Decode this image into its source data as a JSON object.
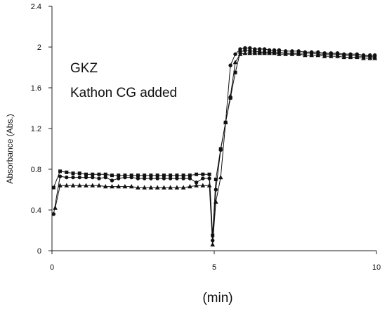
{
  "chart_data": {
    "type": "line",
    "xlabel": "(min)",
    "ylabel": "Absorbance (Abs.)",
    "xlim": [
      0,
      10
    ],
    "ylim": [
      0,
      2.4
    ],
    "xticks": [
      0,
      5,
      10
    ],
    "yticks": [
      0,
      0.4,
      0.8,
      1.2,
      1.6,
      2,
      2.4
    ],
    "xtick_labels": [
      "0",
      "5",
      "10"
    ],
    "ytick_labels": [
      "0",
      "0.4",
      "0.8",
      "1.2",
      "1.6",
      "2",
      "2.4"
    ],
    "annotations": [
      "GKZ",
      "Kathon CG added"
    ],
    "grid": false,
    "series": [
      {
        "marker": "square",
        "x": [
          0.05,
          0.25,
          0.45,
          0.65,
          0.85,
          1.05,
          1.25,
          1.45,
          1.65,
          1.85,
          2.05,
          2.25,
          2.45,
          2.65,
          2.85,
          3.05,
          3.25,
          3.45,
          3.65,
          3.85,
          4.05,
          4.25,
          4.45,
          4.65,
          4.85,
          4.95,
          5.05,
          5.2,
          5.35,
          5.5,
          5.65,
          5.8,
          5.95,
          6.1,
          6.25,
          6.4,
          6.55,
          6.7,
          6.85,
          7.0,
          7.2,
          7.4,
          7.6,
          7.8,
          8.0,
          8.2,
          8.4,
          8.6,
          8.8,
          9.0,
          9.2,
          9.4,
          9.6,
          9.8,
          9.95
        ],
        "values": [
          0.62,
          0.78,
          0.77,
          0.76,
          0.76,
          0.75,
          0.75,
          0.75,
          0.75,
          0.74,
          0.74,
          0.74,
          0.74,
          0.74,
          0.74,
          0.74,
          0.74,
          0.74,
          0.74,
          0.74,
          0.74,
          0.74,
          0.75,
          0.75,
          0.75,
          0.15,
          0.7,
          1.0,
          1.26,
          1.5,
          1.75,
          1.95,
          1.97,
          1.96,
          1.96,
          1.95,
          1.95,
          1.95,
          1.95,
          1.95,
          1.94,
          1.94,
          1.94,
          1.94,
          1.94,
          1.93,
          1.93,
          1.93,
          1.93,
          1.92,
          1.92,
          1.91,
          1.91,
          1.91,
          1.9
        ]
      },
      {
        "marker": "circle",
        "x": [
          0.05,
          0.25,
          0.45,
          0.65,
          0.85,
          1.05,
          1.25,
          1.45,
          1.65,
          1.85,
          2.05,
          2.25,
          2.45,
          2.65,
          2.85,
          3.05,
          3.25,
          3.45,
          3.65,
          3.85,
          4.05,
          4.25,
          4.45,
          4.65,
          4.85,
          4.95,
          5.05,
          5.2,
          5.35,
          5.5,
          5.65,
          5.8,
          5.95,
          6.1,
          6.25,
          6.4,
          6.55,
          6.7,
          6.85,
          7.0,
          7.2,
          7.4,
          7.6,
          7.8,
          8.0,
          8.2,
          8.4,
          8.6,
          8.8,
          9.0,
          9.2,
          9.4,
          9.6,
          9.8,
          9.95
        ],
        "values": [
          0.36,
          0.73,
          0.72,
          0.72,
          0.72,
          0.72,
          0.72,
          0.71,
          0.72,
          0.69,
          0.71,
          0.72,
          0.72,
          0.71,
          0.71,
          0.71,
          0.71,
          0.71,
          0.71,
          0.71,
          0.71,
          0.71,
          0.67,
          0.71,
          0.71,
          0.1,
          0.6,
          0.99,
          1.26,
          1.82,
          1.93,
          1.98,
          1.99,
          1.99,
          1.98,
          1.98,
          1.98,
          1.97,
          1.97,
          1.97,
          1.96,
          1.96,
          1.96,
          1.95,
          1.95,
          1.95,
          1.94,
          1.94,
          1.94,
          1.93,
          1.93,
          1.93,
          1.92,
          1.92,
          1.92
        ]
      },
      {
        "marker": "triangle",
        "x": [
          0.1,
          0.25,
          0.45,
          0.65,
          0.85,
          1.05,
          1.25,
          1.45,
          1.65,
          1.85,
          2.05,
          2.25,
          2.45,
          2.65,
          2.85,
          3.05,
          3.25,
          3.45,
          3.65,
          3.85,
          4.05,
          4.25,
          4.45,
          4.65,
          4.85,
          4.95,
          5.05,
          5.2,
          5.35,
          5.5,
          5.65,
          5.8,
          5.95,
          6.1,
          6.25,
          6.4,
          6.55,
          6.7,
          6.85,
          7.0,
          7.2,
          7.4,
          7.6,
          7.8,
          8.0,
          8.2,
          8.4,
          8.6,
          8.8,
          9.0,
          9.2,
          9.4,
          9.6,
          9.8,
          9.95
        ],
        "values": [
          0.42,
          0.64,
          0.64,
          0.64,
          0.64,
          0.64,
          0.64,
          0.64,
          0.63,
          0.63,
          0.63,
          0.63,
          0.63,
          0.62,
          0.62,
          0.62,
          0.62,
          0.62,
          0.62,
          0.62,
          0.62,
          0.63,
          0.64,
          0.64,
          0.64,
          0.06,
          0.48,
          0.72,
          1.26,
          1.52,
          1.85,
          1.93,
          1.94,
          1.94,
          1.94,
          1.94,
          1.94,
          1.94,
          1.94,
          1.93,
          1.93,
          1.93,
          1.93,
          1.92,
          1.92,
          1.92,
          1.91,
          1.91,
          1.91,
          1.9,
          1.9,
          1.9,
          1.89,
          1.89,
          1.89
        ]
      }
    ]
  }
}
